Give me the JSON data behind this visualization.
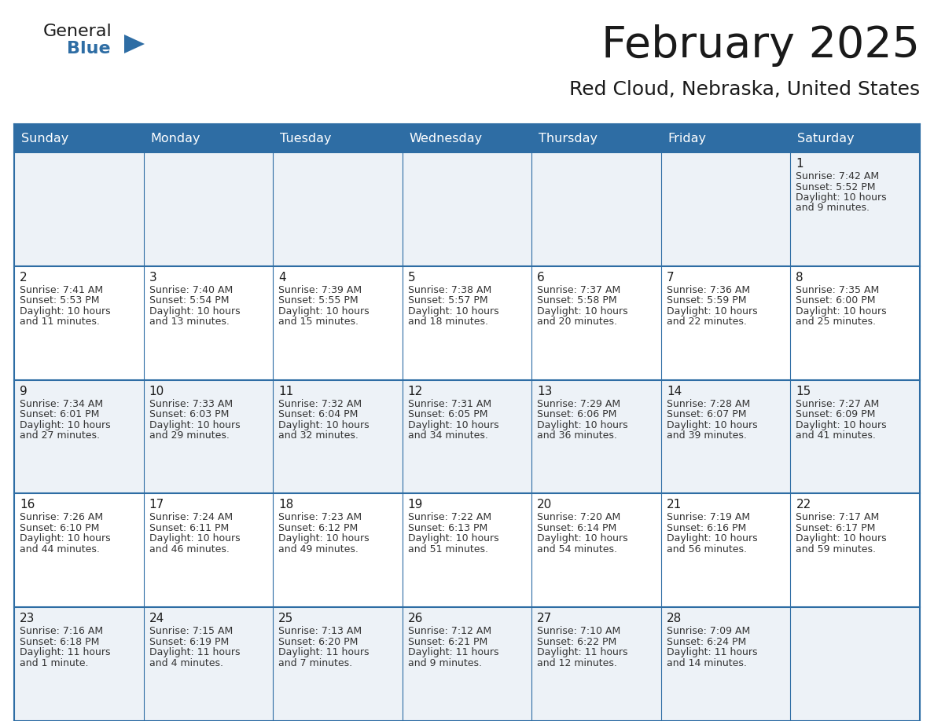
{
  "title": "February 2025",
  "subtitle": "Red Cloud, Nebraska, United States",
  "header_bg": "#2e6da4",
  "header_text": "#ffffff",
  "row_bg_odd": "#edf2f7",
  "row_bg_even": "#ffffff",
  "border_color": "#2e6da4",
  "separator_color": "#2e6da4",
  "day_headers": [
    "Sunday",
    "Monday",
    "Tuesday",
    "Wednesday",
    "Thursday",
    "Friday",
    "Saturday"
  ],
  "title_color": "#1a1a1a",
  "subtitle_color": "#1a1a1a",
  "cell_text_color": "#333333",
  "day_num_color": "#1a1a1a",
  "days": [
    {
      "date": 1,
      "col": 6,
      "row": 0,
      "sunrise": "7:42 AM",
      "sunset": "5:52 PM",
      "daylight_h": "10 hours",
      "daylight_m": "and 9 minutes."
    },
    {
      "date": 2,
      "col": 0,
      "row": 1,
      "sunrise": "7:41 AM",
      "sunset": "5:53 PM",
      "daylight_h": "10 hours",
      "daylight_m": "and 11 minutes."
    },
    {
      "date": 3,
      "col": 1,
      "row": 1,
      "sunrise": "7:40 AM",
      "sunset": "5:54 PM",
      "daylight_h": "10 hours",
      "daylight_m": "and 13 minutes."
    },
    {
      "date": 4,
      "col": 2,
      "row": 1,
      "sunrise": "7:39 AM",
      "sunset": "5:55 PM",
      "daylight_h": "10 hours",
      "daylight_m": "and 15 minutes."
    },
    {
      "date": 5,
      "col": 3,
      "row": 1,
      "sunrise": "7:38 AM",
      "sunset": "5:57 PM",
      "daylight_h": "10 hours",
      "daylight_m": "and 18 minutes."
    },
    {
      "date": 6,
      "col": 4,
      "row": 1,
      "sunrise": "7:37 AM",
      "sunset": "5:58 PM",
      "daylight_h": "10 hours",
      "daylight_m": "and 20 minutes."
    },
    {
      "date": 7,
      "col": 5,
      "row": 1,
      "sunrise": "7:36 AM",
      "sunset": "5:59 PM",
      "daylight_h": "10 hours",
      "daylight_m": "and 22 minutes."
    },
    {
      "date": 8,
      "col": 6,
      "row": 1,
      "sunrise": "7:35 AM",
      "sunset": "6:00 PM",
      "daylight_h": "10 hours",
      "daylight_m": "and 25 minutes."
    },
    {
      "date": 9,
      "col": 0,
      "row": 2,
      "sunrise": "7:34 AM",
      "sunset": "6:01 PM",
      "daylight_h": "10 hours",
      "daylight_m": "and 27 minutes."
    },
    {
      "date": 10,
      "col": 1,
      "row": 2,
      "sunrise": "7:33 AM",
      "sunset": "6:03 PM",
      "daylight_h": "10 hours",
      "daylight_m": "and 29 minutes."
    },
    {
      "date": 11,
      "col": 2,
      "row": 2,
      "sunrise": "7:32 AM",
      "sunset": "6:04 PM",
      "daylight_h": "10 hours",
      "daylight_m": "and 32 minutes."
    },
    {
      "date": 12,
      "col": 3,
      "row": 2,
      "sunrise": "7:31 AM",
      "sunset": "6:05 PM",
      "daylight_h": "10 hours",
      "daylight_m": "and 34 minutes."
    },
    {
      "date": 13,
      "col": 4,
      "row": 2,
      "sunrise": "7:29 AM",
      "sunset": "6:06 PM",
      "daylight_h": "10 hours",
      "daylight_m": "and 36 minutes."
    },
    {
      "date": 14,
      "col": 5,
      "row": 2,
      "sunrise": "7:28 AM",
      "sunset": "6:07 PM",
      "daylight_h": "10 hours",
      "daylight_m": "and 39 minutes."
    },
    {
      "date": 15,
      "col": 6,
      "row": 2,
      "sunrise": "7:27 AM",
      "sunset": "6:09 PM",
      "daylight_h": "10 hours",
      "daylight_m": "and 41 minutes."
    },
    {
      "date": 16,
      "col": 0,
      "row": 3,
      "sunrise": "7:26 AM",
      "sunset": "6:10 PM",
      "daylight_h": "10 hours",
      "daylight_m": "and 44 minutes."
    },
    {
      "date": 17,
      "col": 1,
      "row": 3,
      "sunrise": "7:24 AM",
      "sunset": "6:11 PM",
      "daylight_h": "10 hours",
      "daylight_m": "and 46 minutes."
    },
    {
      "date": 18,
      "col": 2,
      "row": 3,
      "sunrise": "7:23 AM",
      "sunset": "6:12 PM",
      "daylight_h": "10 hours",
      "daylight_m": "and 49 minutes."
    },
    {
      "date": 19,
      "col": 3,
      "row": 3,
      "sunrise": "7:22 AM",
      "sunset": "6:13 PM",
      "daylight_h": "10 hours",
      "daylight_m": "and 51 minutes."
    },
    {
      "date": 20,
      "col": 4,
      "row": 3,
      "sunrise": "7:20 AM",
      "sunset": "6:14 PM",
      "daylight_h": "10 hours",
      "daylight_m": "and 54 minutes."
    },
    {
      "date": 21,
      "col": 5,
      "row": 3,
      "sunrise": "7:19 AM",
      "sunset": "6:16 PM",
      "daylight_h": "10 hours",
      "daylight_m": "and 56 minutes."
    },
    {
      "date": 22,
      "col": 6,
      "row": 3,
      "sunrise": "7:17 AM",
      "sunset": "6:17 PM",
      "daylight_h": "10 hours",
      "daylight_m": "and 59 minutes."
    },
    {
      "date": 23,
      "col": 0,
      "row": 4,
      "sunrise": "7:16 AM",
      "sunset": "6:18 PM",
      "daylight_h": "11 hours",
      "daylight_m": "and 1 minute."
    },
    {
      "date": 24,
      "col": 1,
      "row": 4,
      "sunrise": "7:15 AM",
      "sunset": "6:19 PM",
      "daylight_h": "11 hours",
      "daylight_m": "and 4 minutes."
    },
    {
      "date": 25,
      "col": 2,
      "row": 4,
      "sunrise": "7:13 AM",
      "sunset": "6:20 PM",
      "daylight_h": "11 hours",
      "daylight_m": "and 7 minutes."
    },
    {
      "date": 26,
      "col": 3,
      "row": 4,
      "sunrise": "7:12 AM",
      "sunset": "6:21 PM",
      "daylight_h": "11 hours",
      "daylight_m": "and 9 minutes."
    },
    {
      "date": 27,
      "col": 4,
      "row": 4,
      "sunrise": "7:10 AM",
      "sunset": "6:22 PM",
      "daylight_h": "11 hours",
      "daylight_m": "and 12 minutes."
    },
    {
      "date": 28,
      "col": 5,
      "row": 4,
      "sunrise": "7:09 AM",
      "sunset": "6:24 PM",
      "daylight_h": "11 hours",
      "daylight_m": "and 14 minutes."
    }
  ],
  "logo_color_general": "#1a1a1a",
  "logo_color_blue": "#2e6da4",
  "logo_triangle_color": "#2e6da4"
}
